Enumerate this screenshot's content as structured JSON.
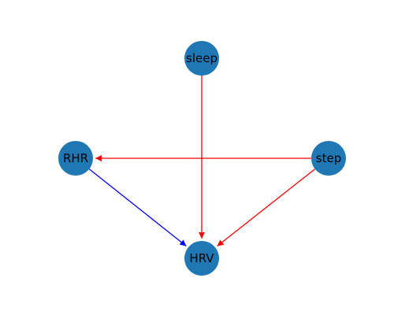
{
  "colors": {
    "node_fill": "#1f77b4",
    "label": "#000000",
    "background": "#ffffff"
  },
  "nodes": [
    {
      "id": "sleep",
      "label": "sleep"
    },
    {
      "id": "RHR",
      "label": "RHR"
    },
    {
      "id": "step",
      "label": "step"
    },
    {
      "id": "HRV",
      "label": "HRV"
    }
  ],
  "edges": [
    {
      "from": "sleep",
      "to": "HRV",
      "color": "#ff0000"
    },
    {
      "from": "step",
      "to": "RHR",
      "color": "#ff0000"
    },
    {
      "from": "step",
      "to": "HRV",
      "color": "#ff0000"
    },
    {
      "from": "RHR",
      "to": "HRV",
      "color": "#0000ff"
    }
  ]
}
